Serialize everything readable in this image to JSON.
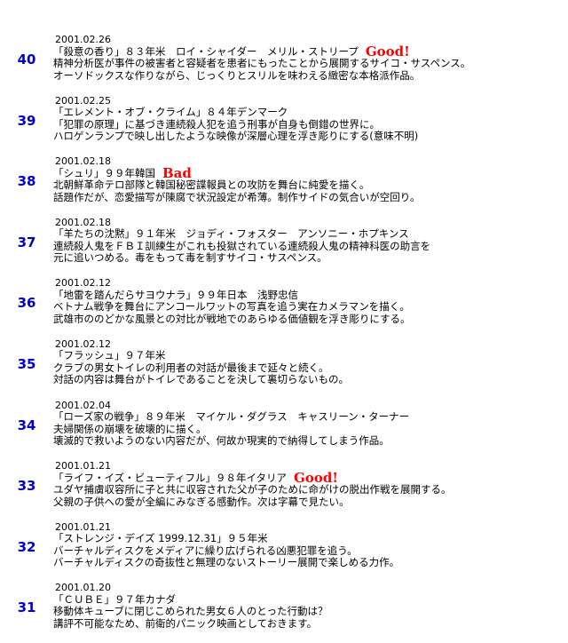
{
  "entries": [
    {
      "number": "40",
      "date": "2001.02.26",
      "title": "「殺意の香り」８３年米　ロイ・シャイダー　メリル・ストリープ",
      "rating": "Good!",
      "comment": [
        "精神分析医が事件の被害者と容疑者を患者にもったことから展開するサイコ・サスペンス。",
        "オーソドックスな作りながら、じっくりとスリルを味わえる緻密な本格派作品。"
      ]
    },
    {
      "number": "39",
      "date": "2001.02.25",
      "title": "「エレメント・オブ・クライム」８４年デンマーク",
      "rating": "",
      "comment": [
        "「犯罪の原理」に基づき連続殺人犯を追う刑事が自身も倒錯の世界に。",
        "ハロゲンランプで映し出したような映像が深層心理を浮き彫りにする(意味不明)"
      ]
    },
    {
      "number": "38",
      "date": "2001.02.18",
      "title": "「シュリ」９９年韓国",
      "rating": "Bad",
      "comment": [
        "北朝鮮革命テロ部隊と韓国秘密諜報員との攻防を舞台に純愛を描く。",
        "話題作だが、恋愛描写が陳腐で状況設定が希薄。制作サイドの気合いが空回り。"
      ]
    },
    {
      "number": "37",
      "date": "2001.02.18",
      "title": "「羊たちの沈黙」９１年米　ジョディ・フォスター　アンソニー・ホプキンス",
      "rating": "",
      "comment": [
        "連続殺人鬼をＦＢＩ訓練生がこれも投獄されている連続殺人鬼の精神科医の助言を",
        "元に追いつめる。毒をもって毒を制すサイコ・サスペンス。"
      ]
    },
    {
      "number": "36",
      "date": "2001.02.12",
      "title": "「地雷を踏んだらサヨウナラ」９９年日本　浅野忠信",
      "rating": "",
      "comment": [
        "ベトナム戦争を舞台にアンコールワットの写真を追う実在カメラマンを描く。",
        "武雄市ののどかな風景との対比が戦地でのあらゆる価値観を浮き彫りにする。"
      ]
    },
    {
      "number": "35",
      "date": "2001.02.12",
      "title": "「フラッシュ」９７年米",
      "rating": "",
      "comment": [
        "クラブの男女トイレの利用者の対話が最後まで延々と続く。",
        "対話の内容は舞台がトイレであることを決して裏切らないもの。"
      ]
    },
    {
      "number": "34",
      "date": "2001.02.04",
      "title": "「ローズ家の戦争」８９年米　マイケル・ダグラス　キャスリーン・ターナー",
      "rating": "",
      "comment": [
        "夫婦関係の崩壊を破壊的に描く。",
        "壊滅的で救いようのない内容だが、何故か現実的で納得してしまう作品。"
      ]
    },
    {
      "number": "33",
      "date": "2001.01.21",
      "title": "「ライフ・イズ・ビューティフル」９８年イタリア",
      "rating": "Good!",
      "comment": [
        "ユダヤ捕虜収容所に子と共に収容された父が子のために命がけの脱出作戦を展開する。",
        "父親の子供への愛が全編にみなぎる感動作。次は字幕で見たい。"
      ]
    },
    {
      "number": "32",
      "date": "2001.01.21",
      "title": "「ストレンジ・デイズ 1999.12.31」９５年米",
      "rating": "",
      "comment": [
        "バーチャルディスクをメディアに繰り広げられる凶悪犯罪を追う。",
        "バーチャルディスクの奇抜性と無理のないストーリー展開で楽しめる力作。"
      ]
    },
    {
      "number": "31",
      "date": "2001.01.20",
      "title": "「ＣＵＢＥ」９７年カナダ",
      "rating": "",
      "comment": [
        "移動体キューブに閉じこめられた男女６人のとった行動は？",
        "講評不可能なため、前衛的パニック映画としておきます。"
      ]
    }
  ]
}
